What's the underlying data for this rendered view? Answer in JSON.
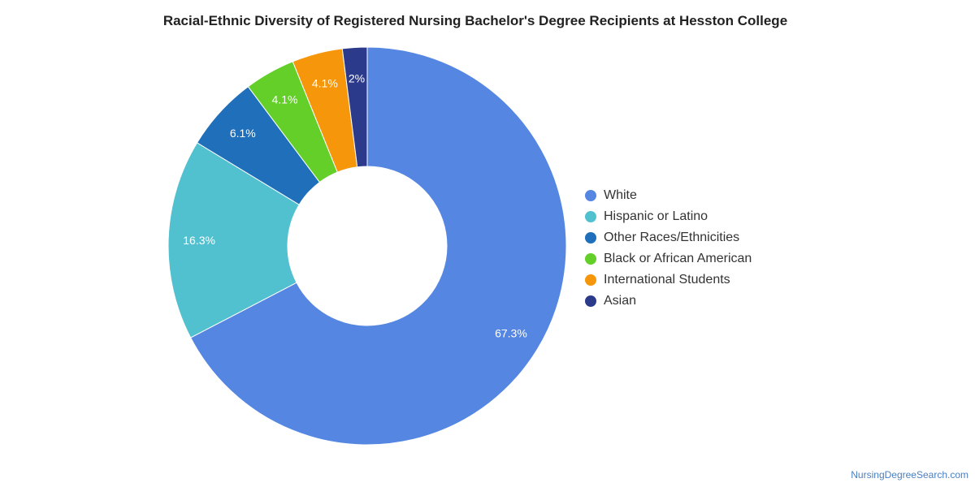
{
  "chart_data": {
    "type": "pie",
    "title": "Racial-Ethnic Diversity of Registered Nursing Bachelor's Degree Recipients at Hesston College",
    "donut": true,
    "legend_position": "right",
    "slices": [
      {
        "name": "White",
        "value": 67.3,
        "label": "67.3%",
        "color": "#5486e2"
      },
      {
        "name": "Hispanic or Latino",
        "value": 16.3,
        "label": "16.3%",
        "color": "#51c1cf"
      },
      {
        "name": "Other Races/Ethnicities",
        "value": 6.1,
        "label": "6.1%",
        "color": "#1f6fba"
      },
      {
        "name": "Black or African American",
        "value": 4.1,
        "label": "4.1%",
        "color": "#63cf28"
      },
      {
        "name": "International Students",
        "value": 4.1,
        "label": "4.1%",
        "color": "#f6960b"
      },
      {
        "name": "Asian",
        "value": 2.0,
        "label": "2%",
        "color": "#2c3a8c"
      }
    ]
  },
  "footer": {
    "source": "NursingDegreeSearch.com"
  }
}
